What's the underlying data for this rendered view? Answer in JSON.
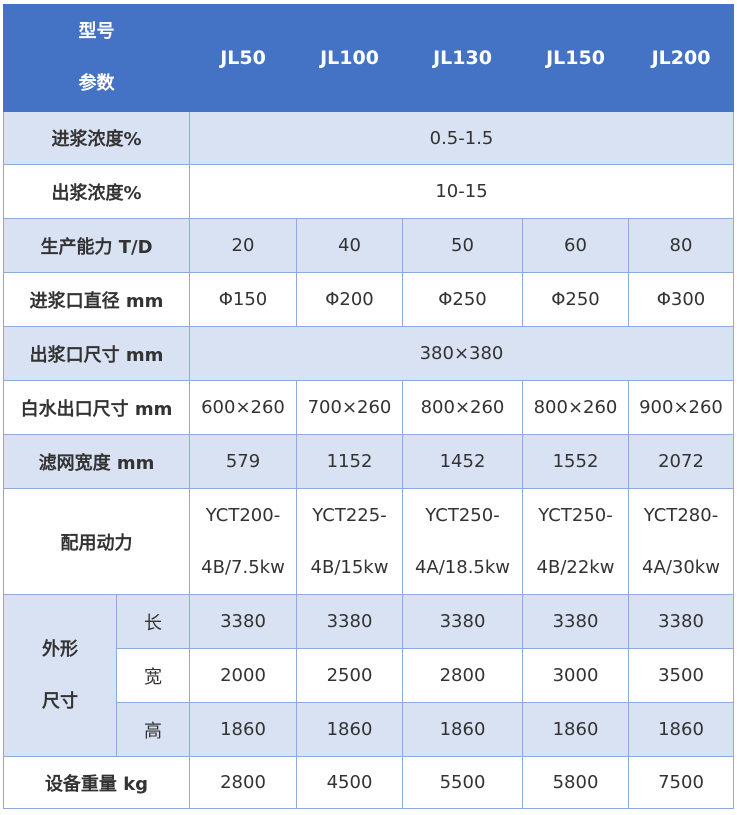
{
  "header": {
    "row_label": "型号",
    "col_label": "参数",
    "models": [
      "JL50",
      "JL100",
      "JL130",
      "JL150",
      "JL200"
    ]
  },
  "rows": {
    "in_conc": {
      "label": "进浆浓度%",
      "value": "0.5-1.5"
    },
    "out_conc": {
      "label": "出浆浓度%",
      "value": "10-15"
    },
    "capacity": {
      "label": "生产能力 T/D",
      "values": [
        "20",
        "40",
        "50",
        "60",
        "80"
      ]
    },
    "inlet": {
      "label": "进浆口直径 mm",
      "values": [
        "Φ150",
        "Φ200",
        "Φ250",
        "Φ250",
        "Φ300"
      ]
    },
    "outlet": {
      "label": "出浆口尺寸 mm",
      "value": "380×380"
    },
    "white_water": {
      "label": "白水出口尺寸 mm",
      "values": [
        "600×260",
        "700×260",
        "800×260",
        "800×260",
        "900×260"
      ]
    },
    "screen": {
      "label": "滤网宽度 mm",
      "values": [
        "579",
        "1152",
        "1452",
        "1552",
        "2072"
      ]
    },
    "power": {
      "label": "配用动力",
      "values": [
        [
          "YCT200-",
          "4B/7.5kw"
        ],
        [
          "YCT225-",
          "4B/15kw"
        ],
        [
          "YCT250-",
          "4A/18.5kw"
        ],
        [
          "YCT250-",
          "4B/22kw"
        ],
        [
          "YCT280-",
          "4A/30kw"
        ]
      ]
    },
    "dims": {
      "label_1": "外形",
      "label_2": "尺寸",
      "length": {
        "label": "长",
        "values": [
          "3380",
          "3380",
          "3380",
          "3380",
          "3380"
        ]
      },
      "width": {
        "label": "宽",
        "values": [
          "2000",
          "2500",
          "2800",
          "3000",
          "3500"
        ]
      },
      "height": {
        "label": "高",
        "values": [
          "1860",
          "1860",
          "1860",
          "1860",
          "1860"
        ]
      }
    },
    "weight": {
      "label": "设备重量 kg",
      "values": [
        "2800",
        "4500",
        "5500",
        "5800",
        "7500"
      ]
    }
  }
}
